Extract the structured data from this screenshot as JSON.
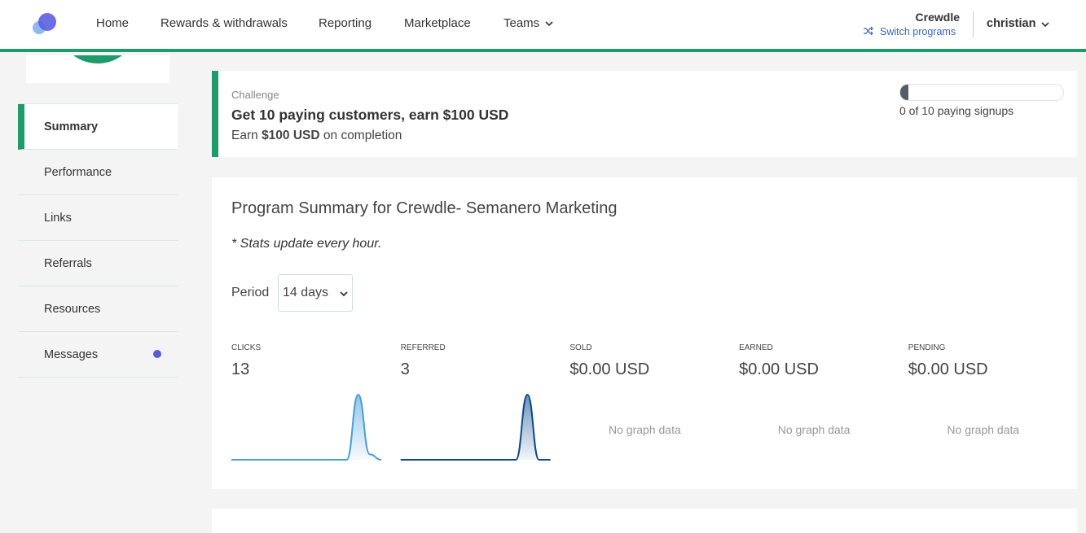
{
  "nav": {
    "items": [
      "Home",
      "Rewards & withdrawals",
      "Reporting",
      "Marketplace",
      "Teams"
    ],
    "program": "Crewdle",
    "switch": "Switch programs",
    "user": "christian"
  },
  "sidebar": {
    "items": [
      "Summary",
      "Performance",
      "Links",
      "Referrals",
      "Resources",
      "Messages"
    ]
  },
  "challenge": {
    "label": "Challenge",
    "title": "Get 10 paying customers, earn $100 USD",
    "earn_prefix": "Earn",
    "earn_amount": "$100 USD",
    "earn_suffix": "on completion",
    "progress": "0 of 10 paying signups"
  },
  "summary": {
    "title": "Program Summary for Crewdle- Semanero Marketing",
    "note": "* Stats update every hour.",
    "period_label": "Period",
    "period": "14 days",
    "stats": [
      {
        "label": "CLICKS",
        "value": "13",
        "color": "#4a9fd8",
        "series": [
          0,
          0,
          0,
          0,
          0,
          0,
          0,
          0,
          0,
          0,
          0,
          12,
          1,
          0
        ]
      },
      {
        "label": "REFERRED",
        "value": "3",
        "color": "#0d4a8c",
        "series": [
          0,
          0,
          0,
          0,
          0,
          0,
          0,
          0,
          0,
          0,
          0,
          3,
          0,
          0
        ]
      },
      {
        "label": "SOLD",
        "value": "$0.00 USD",
        "empty": "No graph data"
      },
      {
        "label": "EARNED",
        "value": "$0.00 USD",
        "empty": "No graph data"
      },
      {
        "label": "PENDING",
        "value": "$0.00 USD",
        "empty": "No graph data"
      }
    ]
  }
}
